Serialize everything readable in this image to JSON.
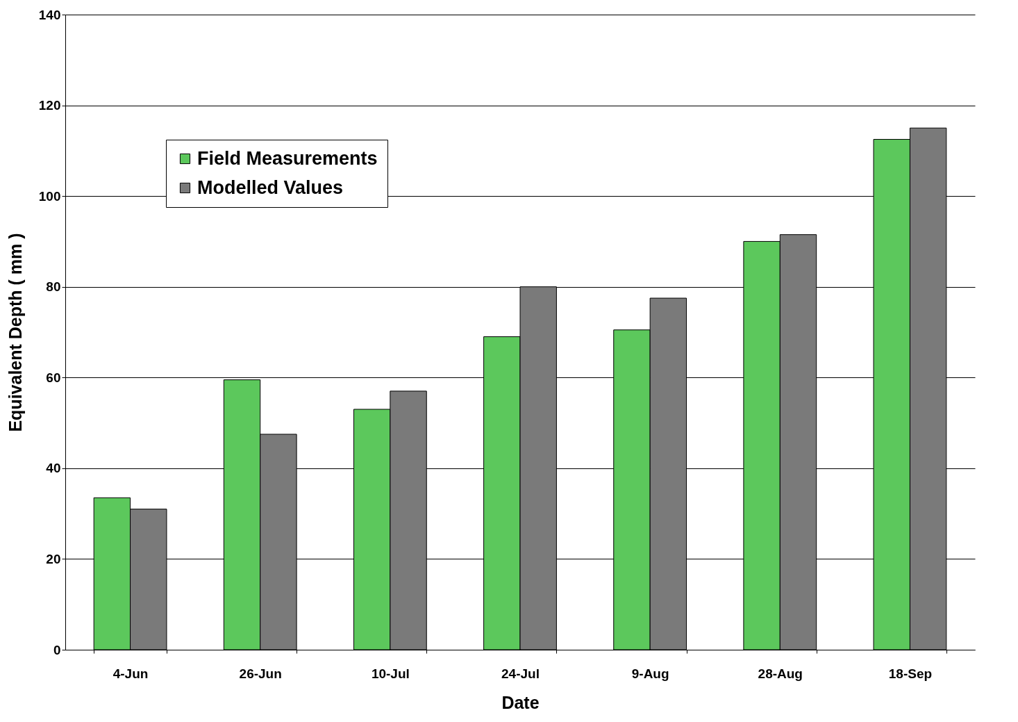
{
  "chart_data": {
    "type": "bar",
    "xlabel": "Date",
    "ylabel": "Equivalent Depth ( mm )",
    "categories": [
      "4-Jun",
      "26-Jun",
      "10-Jul",
      "24-Jul",
      "9-Aug",
      "28-Aug",
      "18-Sep"
    ],
    "series": [
      {
        "name": "Field Measurements",
        "color": "#5cc85c",
        "values": [
          33.5,
          59.5,
          53,
          69,
          70.5,
          90,
          112.5
        ]
      },
      {
        "name": "Modelled Values",
        "color": "#7a7a7a",
        "values": [
          31,
          47.5,
          57,
          80,
          77.5,
          91.5,
          115
        ]
      }
    ],
    "ylim": [
      0,
      140
    ],
    "yticks": [
      0,
      20,
      40,
      60,
      80,
      100,
      120,
      140
    ],
    "grid": "y",
    "legend": "top left"
  }
}
